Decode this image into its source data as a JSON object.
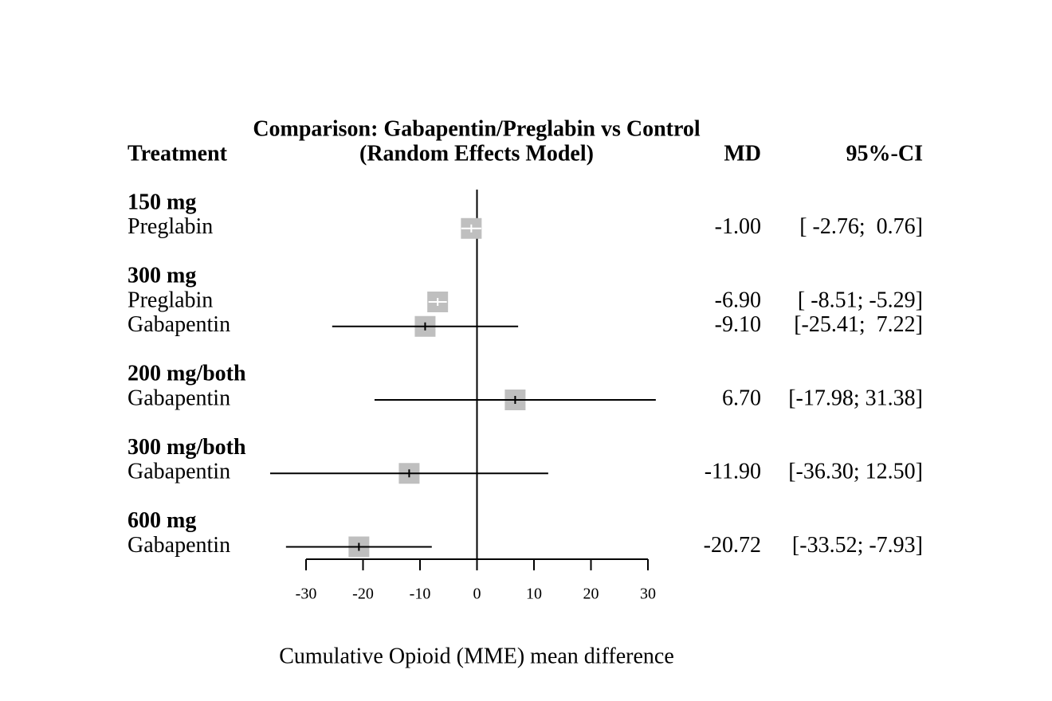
{
  "chart_data": {
    "type": "forest",
    "title": "Comparison: Gabapentin/Preglabin vs Control",
    "subtitle": "(Random Effects Model)",
    "columns": [
      "Treatment",
      "MD",
      "95%-CI"
    ],
    "x_label": "Cumulative Opioid (MME) mean difference",
    "xlim": [
      -30,
      30
    ],
    "xticks": [
      -30,
      -20,
      -10,
      0,
      10,
      20,
      30
    ],
    "color": "#bfbfbf",
    "groups": [
      {
        "name": "150 mg",
        "rows": [
          {
            "name": "Preglabin",
            "value": -1.0,
            "value_label": "-1.00",
            "lower": -2.76,
            "upper": 0.76,
            "ci_label": "[ -2.76;  0.76]"
          }
        ]
      },
      {
        "name": "300 mg",
        "rows": [
          {
            "name": "Preglabin",
            "value": -6.9,
            "value_label": "-6.90",
            "lower": -8.51,
            "upper": -5.29,
            "ci_label": "[ -8.51; -5.29]"
          },
          {
            "name": "Gabapentin",
            "value": -9.1,
            "value_label": "-9.10",
            "lower": -25.41,
            "upper": 7.22,
            "ci_label": "[-25.41;  7.22]"
          }
        ]
      },
      {
        "name": "200 mg/both",
        "rows": [
          {
            "name": "Gabapentin",
            "value": 6.7,
            "value_label": "6.70",
            "lower": -17.98,
            "upper": 31.38,
            "ci_label": "[-17.98; 31.38]"
          }
        ]
      },
      {
        "name": "300 mg/both",
        "rows": [
          {
            "name": "Gabapentin",
            "value": -11.9,
            "value_label": "-11.90",
            "lower": -36.3,
            "upper": 12.5,
            "ci_label": "[-36.30; 12.50]"
          }
        ]
      },
      {
        "name": "600 mg",
        "rows": [
          {
            "name": "Gabapentin",
            "value": -20.72,
            "value_label": "-20.72",
            "lower": -33.52,
            "upper": -7.93,
            "ci_label": "[-33.52; -7.93]"
          }
        ]
      }
    ]
  }
}
